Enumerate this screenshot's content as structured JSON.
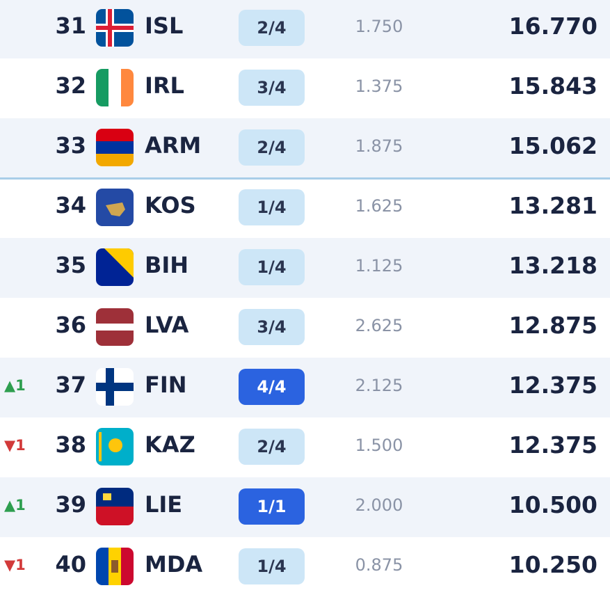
{
  "table": {
    "rows": [
      {
        "move": null,
        "rank": "31",
        "code": "ISL",
        "badge": "2/4",
        "points": "1.750",
        "total": "16.770"
      },
      {
        "move": null,
        "rank": "32",
        "code": "IRL",
        "badge": "3/4",
        "points": "1.375",
        "total": "15.843"
      },
      {
        "move": null,
        "rank": "33",
        "code": "ARM",
        "badge": "2/4",
        "points": "1.875",
        "total": "15.062"
      },
      {
        "move": null,
        "rank": "34",
        "code": "KOS",
        "badge": "1/4",
        "points": "1.625",
        "total": "13.281"
      },
      {
        "move": null,
        "rank": "35",
        "code": "BIH",
        "badge": "1/4",
        "points": "1.125",
        "total": "13.218"
      },
      {
        "move": null,
        "rank": "36",
        "code": "LVA",
        "badge": "3/4",
        "points": "2.625",
        "total": "12.875"
      },
      {
        "move": {
          "arrow": "▲",
          "value": "1",
          "color": "#2e9e4f"
        },
        "rank": "37",
        "code": "FIN",
        "badge": "4/4",
        "badge_color": "#2b63e0",
        "points": "2.125",
        "total": "12.375"
      },
      {
        "move": {
          "arrow": "▼",
          "value": "1",
          "color": "#d23a3a"
        },
        "rank": "38",
        "code": "KAZ",
        "badge": "2/4",
        "points": "1.500",
        "total": "12.375"
      },
      {
        "move": {
          "arrow": "▲",
          "value": "1",
          "color": "#2e9e4f"
        },
        "rank": "39",
        "code": "LIE",
        "badge": "1/1",
        "badge_color": "#2b63e0",
        "points": "2.000",
        "total": "10.500"
      },
      {
        "move": {
          "arrow": "▼",
          "value": "1",
          "color": "#d23a3a"
        },
        "rank": "40",
        "code": "MDA",
        "badge": "1/4",
        "points": "0.875",
        "total": "10.250"
      }
    ]
  }
}
